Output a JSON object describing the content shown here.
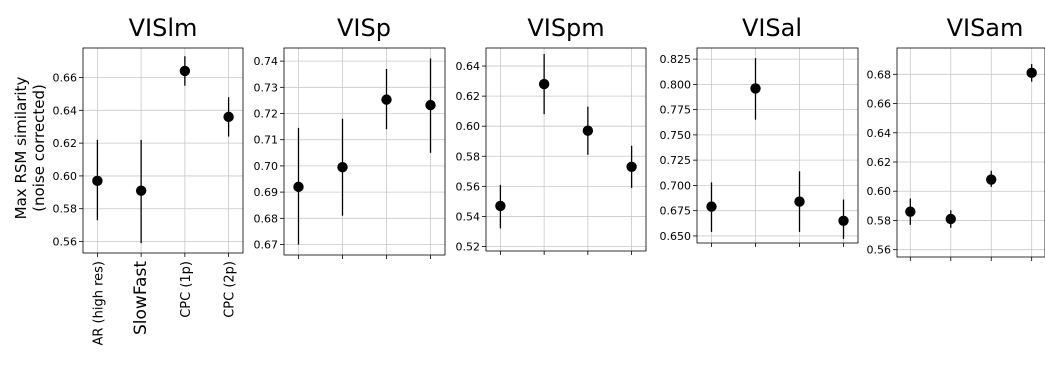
{
  "figure": {
    "ylabel_line1": "Max RSM similarity",
    "ylabel_line2": "(noise corrected)"
  },
  "chart_data": [
    {
      "type": "scatter",
      "title": "VISlm",
      "categories": [
        "AR (high res)",
        "SlowFast",
        "CPC (1p)",
        "CPC (2p)"
      ],
      "values": [
        0.597,
        0.591,
        0.664,
        0.636
      ],
      "err_low": [
        0.573,
        0.559,
        0.655,
        0.624
      ],
      "err_high": [
        0.622,
        0.622,
        0.673,
        0.648
      ],
      "ylim": [
        0.553,
        0.678
      ],
      "yticks": [
        "0.56",
        "0.58",
        "0.60",
        "0.62",
        "0.64",
        "0.66"
      ],
      "grid": true
    },
    {
      "type": "scatter",
      "title": "VISp",
      "categories": [
        "AR (high res)",
        "SlowFast",
        "CPC (1p)",
        "CPC (2p)"
      ],
      "values": [
        0.692,
        0.6995,
        0.7253,
        0.7232
      ],
      "err_low": [
        0.67,
        0.681,
        0.714,
        0.705
      ],
      "err_high": [
        0.7145,
        0.718,
        0.737,
        0.741
      ],
      "ylim": [
        0.666,
        0.745
      ],
      "yticks": [
        "0.67",
        "0.68",
        "0.69",
        "0.70",
        "0.71",
        "0.72",
        "0.73",
        "0.74"
      ],
      "grid": true
    },
    {
      "type": "scatter",
      "title": "VISpm",
      "categories": [
        "AR (high res)",
        "SlowFast",
        "CPC (1p)",
        "CPC (2p)"
      ],
      "values": [
        0.547,
        0.628,
        0.597,
        0.573
      ],
      "err_low": [
        0.532,
        0.608,
        0.581,
        0.559
      ],
      "err_high": [
        0.561,
        0.648,
        0.613,
        0.587
      ],
      "ylim": [
        0.517,
        0.652
      ],
      "yticks": [
        "0.52",
        "0.54",
        "0.56",
        "0.58",
        "0.60",
        "0.62",
        "0.64"
      ],
      "grid": true
    },
    {
      "type": "scatter",
      "title": "VISal",
      "categories": [
        "AR (high res)",
        "SlowFast",
        "CPC (1p)",
        "CPC (2p)"
      ],
      "values": [
        0.679,
        0.796,
        0.684,
        0.665
      ],
      "err_low": [
        0.654,
        0.765,
        0.654,
        0.647
      ],
      "err_high": [
        0.703,
        0.826,
        0.714,
        0.686
      ],
      "ylim": [
        0.643,
        0.836
      ],
      "yticks": [
        "0.650",
        "0.675",
        "0.700",
        "0.725",
        "0.750",
        "0.775",
        "0.800",
        "0.825"
      ],
      "grid": true
    },
    {
      "type": "scatter",
      "title": "VISam",
      "categories": [
        "AR (high res)",
        "SlowFast",
        "CPC (1p)",
        "CPC (2p)"
      ],
      "values": [
        0.586,
        0.581,
        0.608,
        0.681
      ],
      "err_low": [
        0.577,
        0.575,
        0.603,
        0.675
      ],
      "err_high": [
        0.595,
        0.587,
        0.614,
        0.687
      ],
      "ylim": [
        0.555,
        0.698
      ],
      "yticks": [
        "0.56",
        "0.58",
        "0.60",
        "0.62",
        "0.64",
        "0.66",
        "0.68"
      ],
      "grid": true
    }
  ]
}
